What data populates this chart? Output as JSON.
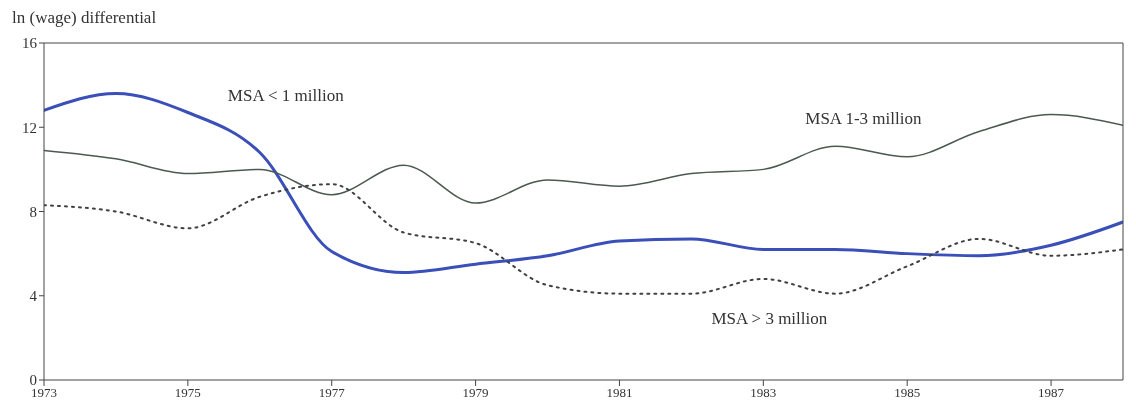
{
  "chart_data": {
    "type": "line",
    "ylabel": "ln (wage) differential",
    "x": [
      1973,
      1974,
      1975,
      1976,
      1977,
      1978,
      1979,
      1980,
      1981,
      1982,
      1983,
      1984,
      1985,
      1986,
      1987,
      1988
    ],
    "series": [
      {
        "name": "MSA < 1 million",
        "color": "#3a4fb8",
        "line_style": "solid",
        "values": [
          12.8,
          13.6,
          12.7,
          10.8,
          6.1,
          5.1,
          5.5,
          5.9,
          6.6,
          6.7,
          6.2,
          6.2,
          6.0,
          5.9,
          6.4,
          7.5
        ]
      },
      {
        "name": "MSA 1-3 million",
        "color": "#4a5a50",
        "line_style": "solid",
        "values": [
          10.9,
          10.5,
          9.8,
          10.0,
          8.8,
          10.2,
          8.4,
          9.5,
          9.2,
          9.8,
          10.0,
          11.1,
          10.6,
          11.8,
          12.6,
          12.1
        ]
      },
      {
        "name": "MSA > 3 million",
        "color": "#404040",
        "line_style": "dotted",
        "values": [
          8.3,
          8.0,
          7.2,
          8.7,
          9.3,
          7.0,
          6.5,
          4.5,
          4.1,
          4.1,
          4.8,
          4.1,
          5.4,
          6.7,
          5.9,
          6.2
        ]
      }
    ],
    "xlim": [
      1973,
      1988
    ],
    "xticks": [
      1973,
      1975,
      1977,
      1979,
      1981,
      1983,
      1985,
      1987
    ],
    "ylim": [
      0,
      16
    ],
    "yticks": [
      0,
      4,
      8,
      12,
      16
    ],
    "grid": false,
    "legend": false,
    "marker": "none"
  }
}
